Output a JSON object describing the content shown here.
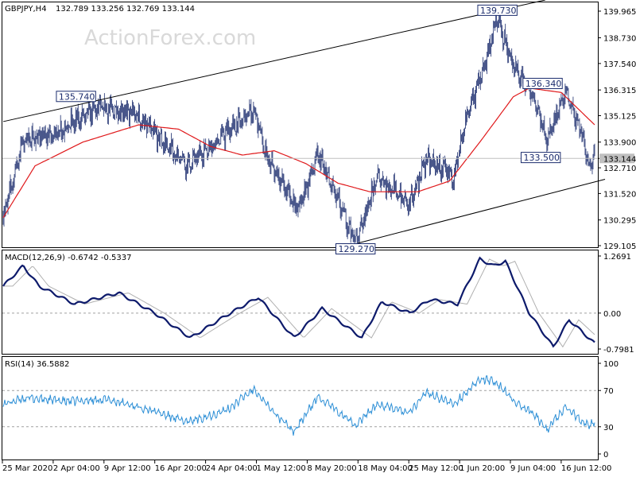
{
  "header": {
    "symbol": "GBPJPY,H4",
    "ohlc": "132.789 133.256 132.769 133.144"
  },
  "watermark": "ActionForex.com",
  "price_panel": {
    "y_ticks": [
      "139.965",
      "138.730",
      "137.540",
      "136.315",
      "135.125",
      "133.900",
      "132.710",
      "131.520",
      "130.295",
      "129.105"
    ],
    "y_tick_values": [
      139.965,
      138.73,
      137.54,
      136.315,
      135.125,
      133.9,
      132.71,
      131.52,
      130.295,
      129.105
    ],
    "current_price": "133.144",
    "current_price_value": 133.144,
    "annotations": [
      {
        "label": "135.740",
        "value": 135.74,
        "bar": 120,
        "pos": "above"
      },
      {
        "label": "129.270",
        "value": 129.27,
        "bar": 442,
        "pos": "below"
      },
      {
        "label": "139.730",
        "value": 139.73,
        "bar": 620,
        "pos": "above"
      },
      {
        "label": "136.340",
        "value": 136.34,
        "bar": 682,
        "pos": "above"
      },
      {
        "label": "133.500",
        "value": 133.5,
        "bar": 695,
        "pos": "below"
      }
    ]
  },
  "macd_panel": {
    "title": "MACD(12,26,9) -0.6742 -0.5337",
    "y_ticks": [
      "1.2691",
      "0.00",
      "-0.7981"
    ],
    "y_tick_values": [
      1.2691,
      0.0,
      -0.7981
    ]
  },
  "rsi_panel": {
    "title": "RSI(14) 36.5882",
    "y_ticks": [
      "100",
      "70",
      "30",
      "0"
    ],
    "y_tick_values": [
      100,
      70,
      30,
      0
    ]
  },
  "x_axis": {
    "labels": [
      "25 Mar 2020",
      "2 Apr 04:00",
      "9 Apr 12:00",
      "16 Apr 20:00",
      "24 Apr 04:00",
      "1 May 12:00",
      "8 May 20:00",
      "18 May 04:00",
      "25 May 12:00",
      "1 Jun 20:00",
      "9 Jun 04:00",
      "16 Jun 12:00"
    ]
  },
  "colors": {
    "price_bars": "#1c2d6e",
    "moving_average": "#e0191b",
    "channel_lines": "#000000",
    "macd_line": "#0d1a6b",
    "signal_line": "#b0b0b0",
    "rsi_line": "#2d8fd6",
    "levels": "#a0a0a0"
  },
  "chart_data": {
    "type": "line",
    "instrument": "GBPJPY",
    "timeframe": "H4",
    "price": {
      "x": [
        "25 Mar 2020",
        "2 Apr 04:00",
        "9 Apr 12:00",
        "16 Apr 20:00",
        "24 Apr 04:00",
        "1 May 12:00",
        "8 May 20:00",
        "18 May 04:00",
        "25 May 12:00",
        "1 Jun 20:00",
        "9 Jun 04:00",
        "16 Jun 12:00"
      ],
      "key_points": [
        {
          "bar": 0,
          "value": 130.4
        },
        {
          "bar": 25,
          "value": 134.0
        },
        {
          "bar": 60,
          "value": 134.2
        },
        {
          "bar": 120,
          "value": 135.5
        },
        {
          "bar": 165,
          "value": 135.2
        },
        {
          "bar": 230,
          "value": 132.8
        },
        {
          "bar": 315,
          "value": 135.4
        },
        {
          "bar": 330,
          "value": 133.2
        },
        {
          "bar": 370,
          "value": 130.8
        },
        {
          "bar": 395,
          "value": 133.3
        },
        {
          "bar": 442,
          "value": 129.3
        },
        {
          "bar": 470,
          "value": 132.3
        },
        {
          "bar": 510,
          "value": 131.0
        },
        {
          "bar": 530,
          "value": 133.1
        },
        {
          "bar": 565,
          "value": 132.3
        },
        {
          "bar": 585,
          "value": 135.5
        },
        {
          "bar": 600,
          "value": 137.0
        },
        {
          "bar": 620,
          "value": 139.6
        },
        {
          "bar": 640,
          "value": 137.4
        },
        {
          "bar": 665,
          "value": 136.0
        },
        {
          "bar": 682,
          "value": 134.0
        },
        {
          "bar": 705,
          "value": 136.2
        },
        {
          "bar": 725,
          "value": 134.5
        },
        {
          "bar": 735,
          "value": 132.9
        },
        {
          "bar": 742,
          "value": 133.144
        }
      ],
      "moving_average": [
        {
          "bar": 0,
          "value": 130.4
        },
        {
          "bar": 40,
          "value": 132.8
        },
        {
          "bar": 100,
          "value": 133.9
        },
        {
          "bar": 170,
          "value": 134.7
        },
        {
          "bar": 220,
          "value": 134.5
        },
        {
          "bar": 260,
          "value": 133.7
        },
        {
          "bar": 300,
          "value": 133.3
        },
        {
          "bar": 340,
          "value": 133.5
        },
        {
          "bar": 380,
          "value": 132.9
        },
        {
          "bar": 420,
          "value": 132.0
        },
        {
          "bar": 460,
          "value": 131.6
        },
        {
          "bar": 520,
          "value": 131.6
        },
        {
          "bar": 560,
          "value": 132.1
        },
        {
          "bar": 600,
          "value": 134.0
        },
        {
          "bar": 640,
          "value": 136.0
        },
        {
          "bar": 660,
          "value": 136.4
        },
        {
          "bar": 700,
          "value": 136.2
        },
        {
          "bar": 742,
          "value": 134.7
        }
      ],
      "channel": [
        {
          "name": "upper",
          "points": [
            {
              "bar": 0,
              "value": 134.85
            },
            {
              "bar": 680,
              "value": 140.48
            }
          ]
        },
        {
          "name": "lower",
          "points": [
            {
              "bar": 445,
              "value": 129.22
            },
            {
              "bar": 755,
              "value": 132.18
            }
          ]
        }
      ]
    },
    "macd": {
      "name": "MACD(12,26,9)",
      "value": -0.6742,
      "signal": -0.5337,
      "key_points": [
        {
          "bar": 0,
          "value": 0.6
        },
        {
          "bar": 25,
          "value": 1.05
        },
        {
          "bar": 45,
          "value": 0.6
        },
        {
          "bar": 90,
          "value": 0.2
        },
        {
          "bar": 145,
          "value": 0.45
        },
        {
          "bar": 190,
          "value": 0.0
        },
        {
          "bar": 235,
          "value": -0.55
        },
        {
          "bar": 280,
          "value": -0.05
        },
        {
          "bar": 320,
          "value": 0.35
        },
        {
          "bar": 365,
          "value": -0.55
        },
        {
          "bar": 400,
          "value": 0.1
        },
        {
          "bar": 450,
          "value": -0.55
        },
        {
          "bar": 475,
          "value": 0.25
        },
        {
          "bar": 510,
          "value": 0.0
        },
        {
          "bar": 535,
          "value": 0.3
        },
        {
          "bar": 570,
          "value": 0.2
        },
        {
          "bar": 598,
          "value": 1.2
        },
        {
          "bar": 615,
          "value": 1.05
        },
        {
          "bar": 630,
          "value": 1.15
        },
        {
          "bar": 660,
          "value": 0.0
        },
        {
          "bar": 690,
          "value": -0.75
        },
        {
          "bar": 710,
          "value": -0.15
        },
        {
          "bar": 742,
          "value": -0.6742
        }
      ]
    },
    "rsi": {
      "name": "RSI(14)",
      "value": 36.5882,
      "levels": [
        70,
        30
      ],
      "key_points": [
        {
          "bar": 0,
          "value": 55
        },
        {
          "bar": 30,
          "value": 62
        },
        {
          "bar": 80,
          "value": 58
        },
        {
          "bar": 130,
          "value": 60
        },
        {
          "bar": 180,
          "value": 50
        },
        {
          "bar": 230,
          "value": 35
        },
        {
          "bar": 280,
          "value": 48
        },
        {
          "bar": 315,
          "value": 72
        },
        {
          "bar": 340,
          "value": 45
        },
        {
          "bar": 365,
          "value": 25
        },
        {
          "bar": 395,
          "value": 63
        },
        {
          "bar": 442,
          "value": 32
        },
        {
          "bar": 470,
          "value": 55
        },
        {
          "bar": 510,
          "value": 45
        },
        {
          "bar": 530,
          "value": 68
        },
        {
          "bar": 565,
          "value": 55
        },
        {
          "bar": 600,
          "value": 83
        },
        {
          "bar": 620,
          "value": 78
        },
        {
          "bar": 640,
          "value": 58
        },
        {
          "bar": 665,
          "value": 45
        },
        {
          "bar": 682,
          "value": 27
        },
        {
          "bar": 705,
          "value": 52
        },
        {
          "bar": 735,
          "value": 30
        },
        {
          "bar": 742,
          "value": 36.5882
        }
      ]
    },
    "bars_count": 743
  }
}
